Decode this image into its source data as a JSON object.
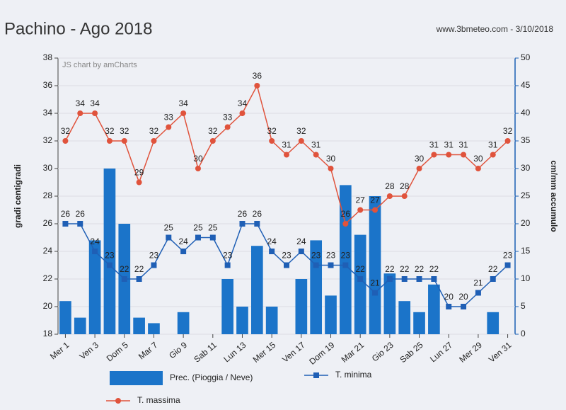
{
  "chart_data": {
    "type": "combo",
    "title": "Pachino - Ago 2018",
    "subtitle": "www.3bmeteo.com - 3/10/2018",
    "credit": "JS chart by amCharts",
    "ylabel": "gradi centigradi",
    "y2label": "cm/mm accumulo",
    "categories": [
      "Mer 1",
      null,
      "Ven 3",
      null,
      "Dom 5",
      null,
      "Mar 7",
      null,
      "Gio 9",
      null,
      "Sab 11",
      null,
      "Lun 13",
      null,
      "Mer 15",
      null,
      "Ven 17",
      null,
      "Dom 19",
      null,
      "Mar 21",
      null,
      "Gio 23",
      null,
      "Sab 25",
      null,
      "Lun 27",
      null,
      "Mer 29",
      null,
      "Ven 31"
    ],
    "series": [
      {
        "name": "Prec. (Pioggia / Neve)",
        "kind": "bar",
        "axis": "y2",
        "color": "#1b74c9",
        "values": [
          6,
          3,
          17,
          30,
          20,
          3,
          2,
          0,
          4,
          0,
          0,
          10,
          5,
          16,
          5,
          0,
          10,
          17,
          7,
          27,
          18,
          25,
          11,
          6,
          4,
          9,
          0,
          0,
          0,
          4,
          0
        ]
      },
      {
        "name": "T. minima",
        "kind": "line",
        "marker": "square",
        "color": "#1f5fb5",
        "values": [
          26,
          26,
          24,
          23,
          22,
          22,
          23,
          25,
          24,
          25,
          25,
          23,
          26,
          26,
          24,
          23,
          24,
          23,
          23,
          23,
          22,
          21,
          22,
          22,
          22,
          22,
          20,
          20,
          21,
          22,
          23
        ]
      },
      {
        "name": "T. massima",
        "kind": "line",
        "marker": "circle",
        "color": "#e0533c",
        "values": [
          32,
          34,
          34,
          32,
          32,
          29,
          32,
          33,
          34,
          30,
          32,
          33,
          34,
          36,
          32,
          31,
          32,
          31,
          30,
          26,
          27,
          27,
          28,
          28,
          30,
          31,
          31,
          31,
          30,
          31,
          32
        ]
      }
    ],
    "ylim": [
      18,
      38
    ],
    "yticks": [
      18,
      20,
      22,
      24,
      26,
      28,
      30,
      32,
      34,
      36,
      38
    ],
    "y2lim": [
      0,
      50
    ],
    "y2ticks": [
      0,
      5,
      10,
      15,
      20,
      25,
      30,
      35,
      40,
      45,
      50
    ],
    "grid": true
  }
}
